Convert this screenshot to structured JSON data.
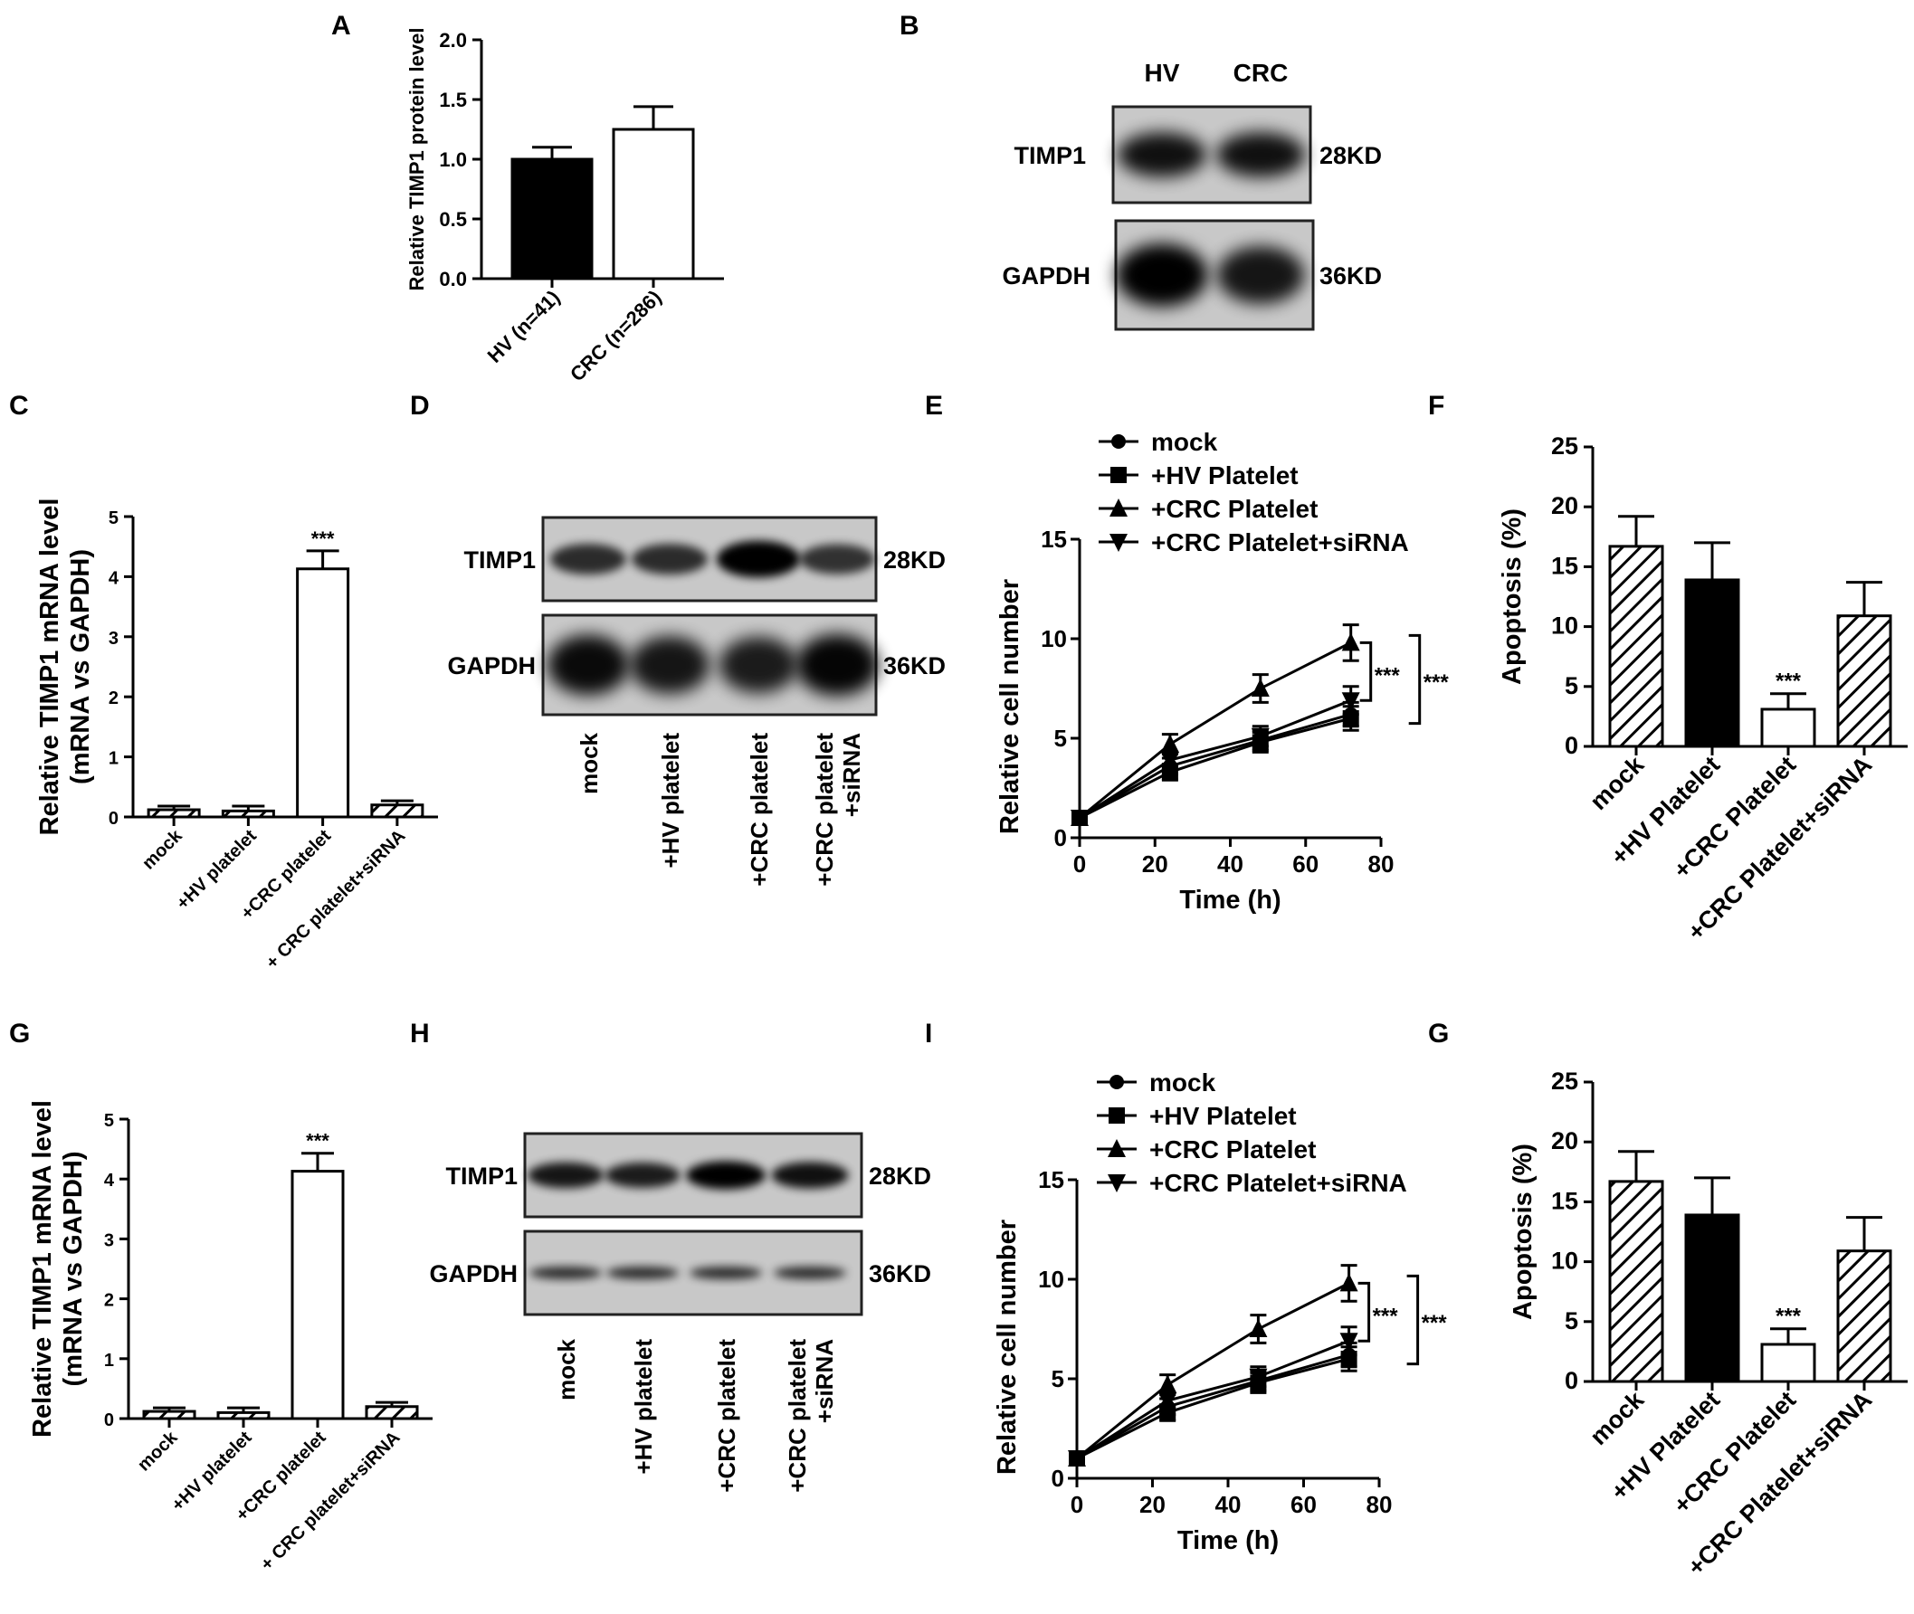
{
  "panel_labels": {
    "A": "A",
    "B": "B",
    "C": "C",
    "D": "D",
    "E": "E",
    "F": "F",
    "G": "G",
    "H": "H",
    "I": "I",
    "G2": "G"
  },
  "chart_data": [
    {
      "id": "A",
      "type": "bar",
      "ylabel": "Relative TIMP1 protein level",
      "ylim": [
        0,
        2.0
      ],
      "ticks": [
        "0.0",
        "0.5",
        "1.0",
        "1.5",
        "2.0"
      ],
      "categories": [
        "HV (n=41)",
        "CRC (n=286)"
      ],
      "values": [
        1.0,
        1.25
      ],
      "errors": [
        0.1,
        0.19
      ],
      "fills": [
        "solid",
        "white"
      ],
      "annotations": [
        "",
        ""
      ]
    },
    {
      "id": "C",
      "type": "bar",
      "ylabel": "Relative TIMP1 mRNA level",
      "ylabel2": "(mRNA vs GAPDH)",
      "ylim": [
        0,
        5
      ],
      "ticks": [
        "0",
        "1",
        "2",
        "3",
        "4",
        "5"
      ],
      "categories": [
        "mock",
        "+HV platelet",
        "+CRC platelet",
        "+ CRC platelet+siRNA"
      ],
      "values": [
        0.12,
        0.1,
        4.13,
        0.2
      ],
      "errors": [
        0.06,
        0.08,
        0.3,
        0.07
      ],
      "fills": [
        "hatch",
        "hatch",
        "white",
        "hatch"
      ],
      "annotations": [
        "",
        "",
        "***",
        ""
      ]
    },
    {
      "id": "E",
      "type": "line",
      "ylabel": "Relative cell number",
      "xlabel": "Time (h)",
      "xlim": [
        0,
        80
      ],
      "ylim": [
        0,
        15
      ],
      "xticks": [
        "0",
        "20",
        "40",
        "60",
        "80"
      ],
      "yticks": [
        "0",
        "5",
        "10",
        "15"
      ],
      "x": [
        0,
        24,
        48,
        72
      ],
      "series": [
        {
          "name": "mock",
          "marker": "circle",
          "values": [
            1.0,
            3.6,
            4.9,
            6.2
          ],
          "errors": [
            0.2,
            0.4,
            0.5,
            0.6
          ]
        },
        {
          "name": "+HV Platelet",
          "marker": "square",
          "values": [
            1.0,
            3.3,
            4.8,
            6.0
          ],
          "errors": [
            0.2,
            0.4,
            0.5,
            0.6
          ]
        },
        {
          "name": "+CRC Platelet",
          "marker": "triangle-up",
          "values": [
            1.0,
            4.7,
            7.5,
            9.8
          ],
          "errors": [
            0.2,
            0.5,
            0.7,
            0.9
          ]
        },
        {
          "name": "+CRC Platelet+siRNA",
          "marker": "triangle-down",
          "values": [
            1.0,
            3.9,
            5.1,
            6.9
          ],
          "errors": [
            0.2,
            0.4,
            0.5,
            0.7
          ]
        }
      ],
      "sig": [
        "***",
        "***"
      ]
    },
    {
      "id": "F",
      "type": "bar",
      "ylabel": "Apoptosis (%)",
      "ylim": [
        0,
        25
      ],
      "ticks": [
        "0",
        "5",
        "10",
        "15",
        "20",
        "25"
      ],
      "categories": [
        "mock",
        "+HV Platelet",
        "+CRC Platelet",
        "+CRC Platelet+siRNA"
      ],
      "values": [
        16.7,
        13.9,
        3.1,
        10.9
      ],
      "errors": [
        2.5,
        3.1,
        1.3,
        2.8
      ],
      "fills": [
        "hatch",
        "solid",
        "white",
        "hatch"
      ],
      "annotations": [
        "",
        "",
        "***",
        ""
      ]
    },
    {
      "id": "G",
      "type": "bar",
      "ylabel": "Relative TIMP1 mRNA level",
      "ylabel2": "(mRNA vs GAPDH)",
      "ylim": [
        0,
        5
      ],
      "ticks": [
        "0",
        "1",
        "2",
        "3",
        "4",
        "5"
      ],
      "categories": [
        "mock",
        "+HV platelet",
        "+CRC platelet",
        "+ CRC platelet+siRNA"
      ],
      "values": [
        0.12,
        0.1,
        4.13,
        0.2
      ],
      "errors": [
        0.06,
        0.08,
        0.3,
        0.07
      ],
      "fills": [
        "hatch",
        "hatch",
        "white",
        "hatch"
      ],
      "annotations": [
        "",
        "",
        "***",
        ""
      ]
    },
    {
      "id": "I",
      "type": "line",
      "ylabel": "Relative cell number",
      "xlabel": "Time (h)",
      "xlim": [
        0,
        80
      ],
      "ylim": [
        0,
        15
      ],
      "xticks": [
        "0",
        "20",
        "40",
        "60",
        "80"
      ],
      "yticks": [
        "0",
        "5",
        "10",
        "15"
      ],
      "x": [
        0,
        24,
        48,
        72
      ],
      "series": [
        {
          "name": "mock",
          "marker": "circle",
          "values": [
            1.0,
            3.6,
            4.9,
            6.2
          ],
          "errors": [
            0.2,
            0.4,
            0.5,
            0.6
          ]
        },
        {
          "name": "+HV Platelet",
          "marker": "square",
          "values": [
            1.0,
            3.3,
            4.8,
            6.0
          ],
          "errors": [
            0.2,
            0.4,
            0.5,
            0.6
          ]
        },
        {
          "name": "+CRC Platelet",
          "marker": "triangle-up",
          "values": [
            1.0,
            4.7,
            7.5,
            9.8
          ],
          "errors": [
            0.2,
            0.5,
            0.7,
            0.9
          ]
        },
        {
          "name": "+CRC Platelet+siRNA",
          "marker": "triangle-down",
          "values": [
            1.0,
            3.9,
            5.1,
            6.9
          ],
          "errors": [
            0.2,
            0.4,
            0.5,
            0.7
          ]
        }
      ],
      "sig": [
        "***",
        "***"
      ]
    },
    {
      "id": "G2",
      "type": "bar",
      "ylabel": "Apoptosis (%)",
      "ylim": [
        0,
        25
      ],
      "ticks": [
        "0",
        "5",
        "10",
        "15",
        "20",
        "25"
      ],
      "categories": [
        "mock",
        "+HV Platelet",
        "+CRC Platelet",
        "+CRC Platelet+siRNA"
      ],
      "values": [
        16.7,
        13.9,
        3.1,
        10.9
      ],
      "errors": [
        2.5,
        3.1,
        1.3,
        2.8
      ],
      "fills": [
        "hatch",
        "solid",
        "white",
        "hatch"
      ],
      "annotations": [
        "",
        "",
        "***",
        ""
      ]
    }
  ],
  "blots": [
    {
      "id": "B",
      "columns": [
        "HV",
        "CRC"
      ],
      "rows": [
        {
          "label": "TIMP1",
          "size": "28KD",
          "intensities": [
            0.85,
            0.85
          ]
        },
        {
          "label": "GAPDH",
          "size": "36KD",
          "intensities": [
            1.0,
            0.8
          ]
        }
      ]
    },
    {
      "id": "D",
      "lanes": [
        "mock",
        "+HV platelet",
        "+CRC platelet",
        "+CRC platelet\n+siRNA"
      ],
      "rows": [
        {
          "label": "TIMP1",
          "size": "28KD",
          "intensities": [
            0.6,
            0.6,
            1.0,
            0.55
          ]
        },
        {
          "label": "GAPDH",
          "size": "36KD",
          "intensities": [
            0.9,
            0.8,
            0.75,
            0.95
          ]
        }
      ]
    },
    {
      "id": "H",
      "lanes": [
        "mock",
        "+HV platelet",
        "+CRC platelet",
        "+CRC platelet\n+siRNA"
      ],
      "rows": [
        {
          "label": "TIMP1",
          "size": "28KD",
          "intensities": [
            0.8,
            0.75,
            1.0,
            0.85
          ]
        },
        {
          "label": "GAPDH",
          "size": "36KD",
          "intensities": [
            0.6,
            0.6,
            0.6,
            0.6
          ]
        }
      ]
    }
  ]
}
